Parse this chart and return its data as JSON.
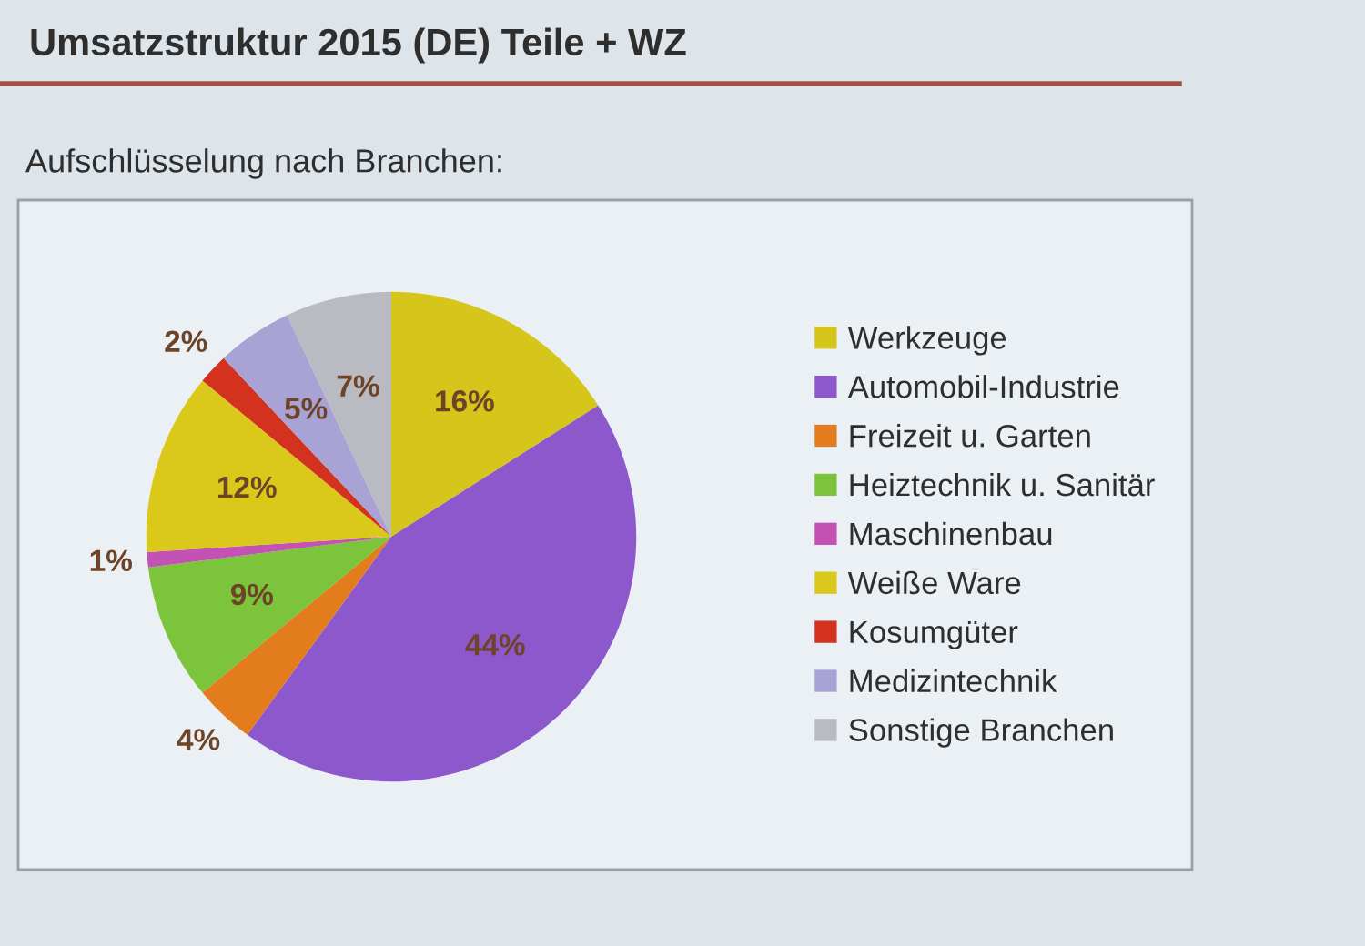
{
  "chart_data": {
    "type": "pie",
    "title": "Umsatzstruktur 2015 (DE) Teile + WZ",
    "subtitle": "Aufschlüsselung nach Branchen:",
    "categories": [
      "Werkzeuge",
      "Automobil-Industrie",
      "Freizeit u. Garten",
      "Heiztechnik u. Sanitär",
      "Maschinenbau",
      "Weiße Ware",
      "Kosumgüter",
      "Medizintechnik",
      "Sonstige Branchen"
    ],
    "values": [
      16,
      44,
      4,
      9,
      1,
      12,
      2,
      5,
      7
    ],
    "value_labels": [
      "16%",
      "44%",
      "4%",
      "9%",
      "1%",
      "12%",
      "2%",
      "5%",
      "7%"
    ],
    "colors": [
      "#d6c61c",
      "#8c58cc",
      "#e27c1c",
      "#7cc43c",
      "#c452b4",
      "#dac81a",
      "#d2321e",
      "#a9a2d4",
      "#b9bac2"
    ],
    "legend": "right"
  }
}
